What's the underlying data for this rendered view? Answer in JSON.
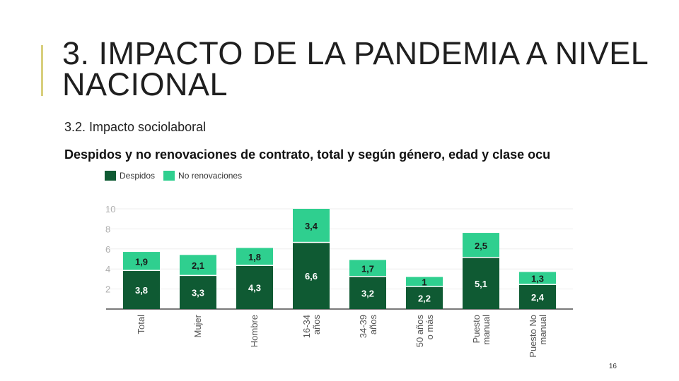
{
  "slide": {
    "title": "3. IMPACTO DE LA PANDEMIA A NIVEL NACIONAL",
    "subtitle": "3.2. Impacto sociolaboral",
    "description": "Despidos y no renovaciones de contrato, total y según género, edad y clase ocu",
    "page_number": "16",
    "accent_color": "#d8cf7d"
  },
  "chart_data": {
    "type": "bar",
    "stacked": true,
    "categories": [
      "Total",
      "Mujer",
      "Hombre",
      "16-34 años",
      "34-39 años",
      "50 años o más",
      "Puesto manual",
      "Puesto No manual"
    ],
    "series": [
      {
        "name": "Despidos",
        "color": "#0f5a33",
        "values": [
          3.8,
          3.3,
          4.3,
          6.6,
          3.2,
          2.2,
          5.1,
          2.4
        ]
      },
      {
        "name": "No renovaciones",
        "color": "#2fcf8f",
        "values": [
          1.9,
          2.1,
          1.8,
          3.4,
          1.7,
          1,
          2.5,
          1.3
        ]
      }
    ],
    "value_labels": [
      [
        "3,8",
        "3,3",
        "4,3",
        "6,6",
        "3,2",
        "2,2",
        "5,1",
        "2,4"
      ],
      [
        "1,9",
        "2,1",
        "1,8",
        "3,4",
        "1,7",
        "1",
        "2,5",
        "1,3"
      ]
    ],
    "y_ticks": [
      2,
      4,
      6,
      8,
      10
    ],
    "ylim": [
      0,
      10
    ],
    "legend_position": "top-left"
  }
}
